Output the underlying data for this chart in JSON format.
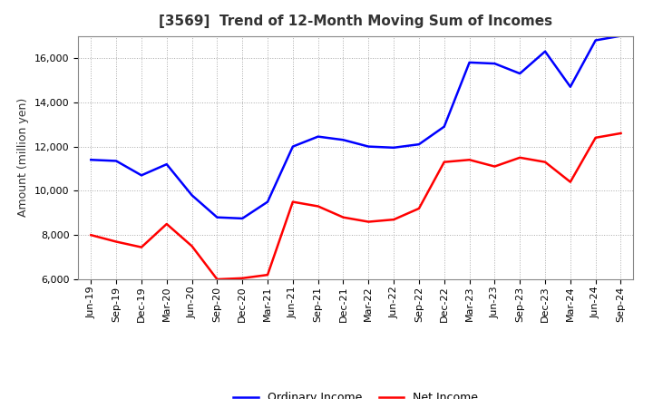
{
  "title": "[3569]  Trend of 12-Month Moving Sum of Incomes",
  "ylabel": "Amount (million yen)",
  "ylim": [
    6000,
    17000
  ],
  "yticks": [
    6000,
    8000,
    10000,
    12000,
    14000,
    16000
  ],
  "ordinary_income": {
    "label": "Ordinary Income",
    "color": "#0000FF",
    "values": [
      11400,
      11350,
      10700,
      11200,
      9800,
      8800,
      8750,
      9500,
      12000,
      12450,
      12300,
      12000,
      11950,
      12100,
      12900,
      15800,
      15750,
      15300,
      16300,
      14700,
      16800,
      17000
    ]
  },
  "net_income": {
    "label": "Net Income",
    "color": "#FF0000",
    "values": [
      8000,
      7700,
      7450,
      8500,
      7500,
      6000,
      6050,
      6200,
      9500,
      9300,
      8800,
      8600,
      8700,
      9200,
      11300,
      11400,
      11100,
      11500,
      11300,
      10400,
      12400,
      12600
    ]
  },
  "x_labels": [
    "Jun-19",
    "Sep-19",
    "Dec-19",
    "Mar-20",
    "Jun-20",
    "Sep-20",
    "Dec-20",
    "Mar-21",
    "Jun-21",
    "Sep-21",
    "Dec-21",
    "Mar-22",
    "Jun-22",
    "Sep-22",
    "Dec-22",
    "Mar-23",
    "Jun-23",
    "Sep-23",
    "Dec-23",
    "Mar-24",
    "Jun-24",
    "Sep-24"
  ],
  "title_color": "#333333",
  "title_fontsize": 11,
  "ylabel_fontsize": 9,
  "tick_fontsize": 8,
  "legend_fontsize": 9,
  "background_color": "#FFFFFF",
  "grid_color": "#AAAAAA",
  "line_width": 1.8
}
